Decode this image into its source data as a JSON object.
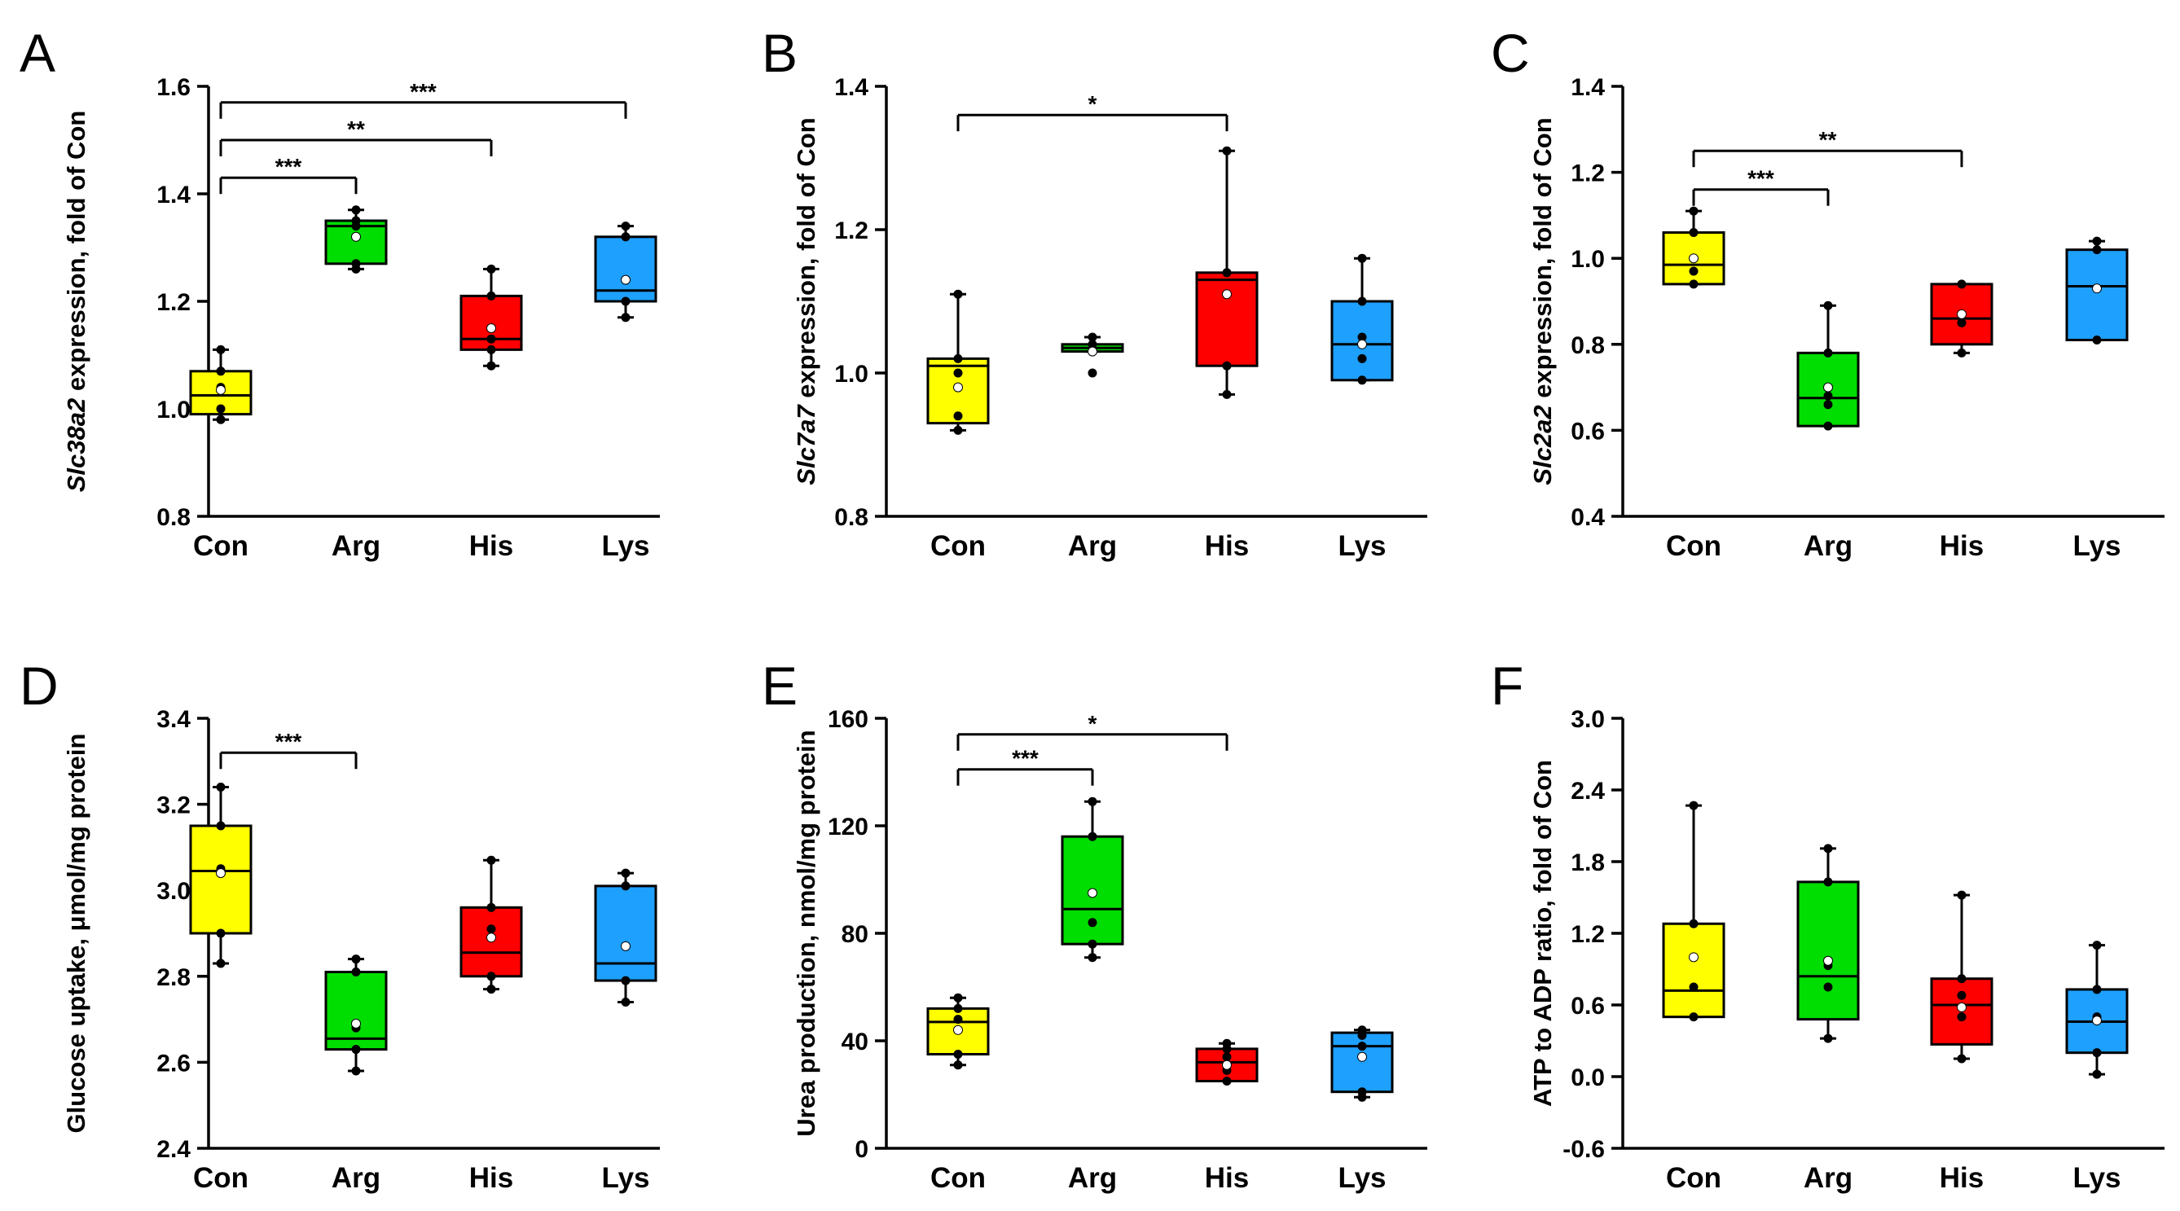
{
  "chart_data": [
    {
      "panel": "A",
      "type": "box",
      "ylabel_italic": "Slc38a2",
      "ylabel_rest": " expression, fold of Con",
      "ylim": [
        0.8,
        1.6
      ],
      "ticks": [
        "0.8",
        "1.0",
        "1.2",
        "1.4",
        "1.6"
      ],
      "categories": [
        "Con",
        "Arg",
        "His",
        "Lys"
      ],
      "boxes": [
        {
          "whislo": 0.98,
          "q1": 0.99,
          "med": 1.025,
          "q3": 1.07,
          "whishi": 1.11,
          "mean": 1.035,
          "points": [
            0.98,
            1.0,
            1.04,
            1.07,
            1.11
          ]
        },
        {
          "whislo": 1.26,
          "q1": 1.27,
          "med": 1.34,
          "q3": 1.35,
          "whishi": 1.37,
          "mean": 1.32,
          "points": [
            1.26,
            1.27,
            1.34,
            1.35,
            1.37
          ]
        },
        {
          "whislo": 1.08,
          "q1": 1.11,
          "med": 1.13,
          "q3": 1.21,
          "whishi": 1.26,
          "mean": 1.15,
          "points": [
            1.08,
            1.11,
            1.13,
            1.21,
            1.26
          ]
        },
        {
          "whislo": 1.17,
          "q1": 1.2,
          "med": 1.22,
          "q3": 1.32,
          "whishi": 1.34,
          "mean": 1.24,
          "points": [
            1.17,
            1.2,
            1.24,
            1.32,
            1.34
          ]
        }
      ],
      "significance": [
        {
          "from": 0,
          "to": 1,
          "label": "***",
          "y": 1.43
        },
        {
          "from": 0,
          "to": 2,
          "label": "**",
          "y": 1.5
        },
        {
          "from": 0,
          "to": 3,
          "label": "***",
          "y": 1.57
        }
      ]
    },
    {
      "panel": "B",
      "type": "box",
      "ylabel_italic": "Slc7a7",
      "ylabel_rest": " expression, fold of Con",
      "ylim": [
        0.8,
        1.4
      ],
      "ticks": [
        "0.8",
        "1.0",
        "1.2",
        "1.4"
      ],
      "categories": [
        "Con",
        "Arg",
        "His",
        "Lys"
      ],
      "boxes": [
        {
          "whislo": 0.92,
          "q1": 0.93,
          "med": 1.01,
          "q3": 1.02,
          "whishi": 1.11,
          "mean": 0.98,
          "points": [
            0.92,
            0.94,
            1.0,
            1.02,
            1.11
          ]
        },
        {
          "whislo": 1.03,
          "q1": 1.03,
          "med": 1.035,
          "q3": 1.04,
          "whishi": 1.05,
          "mean": 1.03,
          "points": [
            1.0,
            1.03,
            1.04,
            1.05
          ]
        },
        {
          "whislo": 0.97,
          "q1": 1.01,
          "med": 1.13,
          "q3": 1.14,
          "whishi": 1.31,
          "mean": 1.11,
          "points": [
            0.97,
            1.01,
            1.14,
            1.31
          ]
        },
        {
          "whislo": 0.99,
          "q1": 0.99,
          "med": 1.04,
          "q3": 1.1,
          "whishi": 1.16,
          "mean": 1.04,
          "points": [
            0.99,
            1.02,
            1.05,
            1.1,
            1.16
          ]
        }
      ],
      "significance": [
        {
          "from": 0,
          "to": 2,
          "label": "*",
          "y": 1.36
        }
      ]
    },
    {
      "panel": "C",
      "type": "box",
      "ylabel_italic": "Slc2a2",
      "ylabel_rest": " expression, fold of Con",
      "ylim": [
        0.4,
        1.4
      ],
      "ticks": [
        "0.4",
        "0.6",
        "0.8",
        "1.0",
        "1.2",
        "1.4"
      ],
      "categories": [
        "Con",
        "Arg",
        "His",
        "Lys"
      ],
      "boxes": [
        {
          "whislo": 0.94,
          "q1": 0.94,
          "med": 0.985,
          "q3": 1.06,
          "whishi": 1.11,
          "mean": 1.0,
          "points": [
            0.94,
            0.97,
            1.0,
            1.06,
            1.11
          ]
        },
        {
          "whislo": 0.61,
          "q1": 0.61,
          "med": 0.675,
          "q3": 0.78,
          "whishi": 0.89,
          "mean": 0.7,
          "points": [
            0.61,
            0.66,
            0.68,
            0.78,
            0.89
          ]
        },
        {
          "whislo": 0.78,
          "q1": 0.8,
          "med": 0.86,
          "q3": 0.94,
          "whishi": 0.94,
          "mean": 0.87,
          "points": [
            0.78,
            0.85,
            0.87,
            0.94
          ]
        },
        {
          "whislo": 0.81,
          "q1": 0.81,
          "med": 0.935,
          "q3": 1.02,
          "whishi": 1.04,
          "mean": 0.93,
          "points": [
            0.81,
            0.93,
            1.02,
            1.04
          ]
        }
      ],
      "significance": [
        {
          "from": 0,
          "to": 1,
          "label": "***",
          "y": 1.16
        },
        {
          "from": 0,
          "to": 2,
          "label": "**",
          "y": 1.25
        }
      ]
    },
    {
      "panel": "D",
      "type": "box",
      "ylabel_italic": "",
      "ylabel_rest": "Glucose uptake, μmol/mg protein",
      "ylim": [
        2.4,
        3.4
      ],
      "ticks": [
        "2.4",
        "2.6",
        "2.8",
        "3.0",
        "3.2",
        "3.4"
      ],
      "categories": [
        "Con",
        "Arg",
        "His",
        "Lys"
      ],
      "boxes": [
        {
          "whislo": 2.83,
          "q1": 2.9,
          "med": 3.045,
          "q3": 3.15,
          "whishi": 3.24,
          "mean": 3.04,
          "points": [
            2.83,
            2.9,
            3.05,
            3.15,
            3.24
          ]
        },
        {
          "whislo": 2.58,
          "q1": 2.63,
          "med": 2.655,
          "q3": 2.81,
          "whishi": 2.84,
          "mean": 2.69,
          "points": [
            2.58,
            2.63,
            2.68,
            2.81,
            2.84
          ]
        },
        {
          "whislo": 2.77,
          "q1": 2.8,
          "med": 2.855,
          "q3": 2.96,
          "whishi": 3.07,
          "mean": 2.89,
          "points": [
            2.77,
            2.8,
            2.91,
            2.96,
            3.07
          ]
        },
        {
          "whislo": 2.74,
          "q1": 2.79,
          "med": 2.83,
          "q3": 3.01,
          "whishi": 3.04,
          "mean": 2.87,
          "points": [
            2.74,
            2.79,
            2.87,
            3.01,
            3.04
          ]
        }
      ],
      "significance": [
        {
          "from": 0,
          "to": 1,
          "label": "***",
          "y": 3.32
        }
      ]
    },
    {
      "panel": "E",
      "type": "box",
      "ylabel_italic": "",
      "ylabel_rest": "Urea production, nmol/mg protein",
      "ylim": [
        0,
        160
      ],
      "ticks": [
        "0",
        "40",
        "80",
        "120",
        "160"
      ],
      "categories": [
        "Con",
        "Arg",
        "His",
        "Lys"
      ],
      "boxes": [
        {
          "whislo": 31,
          "q1": 35,
          "med": 47,
          "q3": 52,
          "whishi": 56,
          "mean": 44,
          "points": [
            31,
            35,
            44,
            48,
            52,
            56
          ]
        },
        {
          "whislo": 71,
          "q1": 76,
          "med": 89,
          "q3": 116,
          "whishi": 129,
          "mean": 95,
          "points": [
            71,
            76,
            84,
            116,
            129
          ]
        },
        {
          "whislo": 25,
          "q1": 25,
          "med": 32,
          "q3": 37,
          "whishi": 39,
          "mean": 31,
          "points": [
            25,
            29,
            34,
            37,
            39
          ]
        },
        {
          "whislo": 19,
          "q1": 21,
          "med": 38,
          "q3": 43,
          "whishi": 44,
          "mean": 34,
          "points": [
            19,
            21,
            38,
            42,
            44
          ]
        }
      ],
      "significance": [
        {
          "from": 0,
          "to": 1,
          "label": "***",
          "y": 141
        },
        {
          "from": 0,
          "to": 2,
          "label": "*",
          "y": 154
        }
      ]
    },
    {
      "panel": "F",
      "type": "box",
      "ylabel_italic": "",
      "ylabel_rest": "ATP to ADP ratio, fold of Con",
      "ylim": [
        -0.6,
        3.0
      ],
      "ticks": [
        "-0.6",
        "0.0",
        "0.6",
        "1.2",
        "1.8",
        "2.4",
        "3.0"
      ],
      "categories": [
        "Con",
        "Arg",
        "His",
        "Lys"
      ],
      "boxes": [
        {
          "whislo": 0.5,
          "q1": 0.5,
          "med": 0.72,
          "q3": 1.28,
          "whishi": 2.27,
          "mean": 1.0,
          "points": [
            0.5,
            0.75,
            1.28,
            2.27
          ]
        },
        {
          "whislo": 0.32,
          "q1": 0.48,
          "med": 0.84,
          "q3": 1.63,
          "whishi": 1.91,
          "mean": 0.97,
          "points": [
            0.32,
            0.75,
            0.93,
            1.63,
            1.91
          ]
        },
        {
          "whislo": 0.15,
          "q1": 0.27,
          "med": 0.6,
          "q3": 0.82,
          "whishi": 1.52,
          "mean": 0.58,
          "points": [
            0.15,
            0.5,
            0.68,
            0.82,
            1.52
          ]
        },
        {
          "whislo": 0.02,
          "q1": 0.2,
          "med": 0.46,
          "q3": 0.73,
          "whishi": 1.1,
          "mean": 0.47,
          "points": [
            0.02,
            0.2,
            0.5,
            0.73,
            1.1
          ]
        }
      ],
      "significance": []
    }
  ],
  "colors": {
    "Con": "#ffff00",
    "Arg": "#00dd00",
    "His": "#ff0000",
    "Lys": "#1ea0ff",
    "axis": "#000000",
    "point": "#000000",
    "mean": "#ffffff"
  }
}
